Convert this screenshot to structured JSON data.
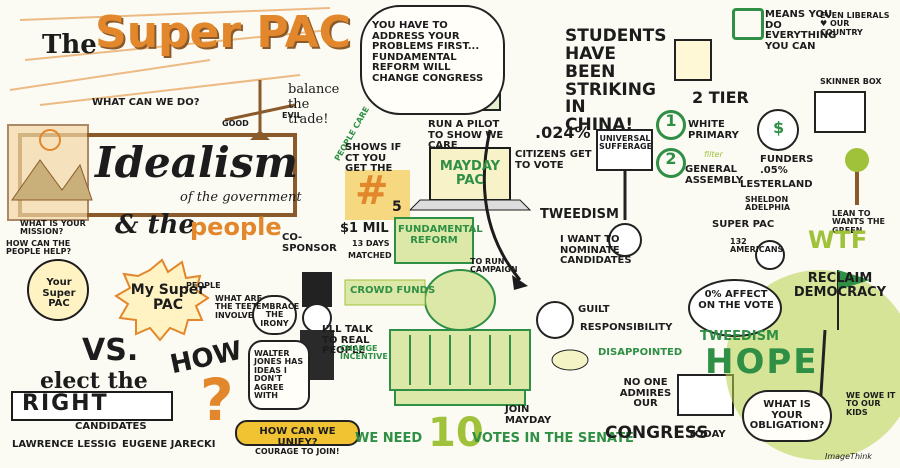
{
  "title": {
    "the": "The",
    "super_pac": "Super PAC"
  },
  "left": {
    "what_can_we_do": "What can we do?",
    "good": "Good",
    "evil": "Evil",
    "balance": "balance the trade!",
    "idealism": "Idealism",
    "of_government": "of the government",
    "and_the": "& the",
    "people": "people",
    "what_is_mission": "What is your mission?",
    "how_can_people_help": "How can the people help?",
    "your_super_pac": "Your Super PAC",
    "my_super_pac": "My Super PAC",
    "people_tag": "People",
    "what_are_teeth": "What are the teeth involved?",
    "vs": "VS.",
    "elect_the": "elect the",
    "right": "Right",
    "candidates": "candidates",
    "how": "How",
    "question": "?",
    "lawrence": "Lawrence Lessig",
    "eugene": "Eugene Jarecki",
    "co_sponsor": "Co-Sponsor",
    "embrace_irony": "Embrace the Irony",
    "walter_jones": "Walter Jones has ideas I don't agree with",
    "ill_talk": "I'll talk to real people",
    "how_unify": "How can we unify?",
    "courage": "Courage to join!"
  },
  "middle": {
    "address_problems": "You have to address your problems first... fundamental reform will change Congress",
    "people_care": "People Care",
    "shows_if": "Shows if CT you get the",
    "hash": "#",
    "five": "5",
    "run_pilot": "Run a pilot to show we care",
    "mayday_pac": "Mayday PAC",
    "one_mil": "$1 Mil",
    "thirteen_days": "13 days",
    "matched": "Matched",
    "fundamental_reform": "Fundamental Reform",
    "to_run_campaign": "To run campaign",
    "crowd_funds": "Crowd Funds",
    "change_incentive": "Change incentive",
    "we_need": "We need",
    "ten": "10",
    "votes_senate": "votes in the senate",
    "join_mayday": "Join Mayday"
  },
  "right": {
    "students": "Students have been striking in China!",
    "pct_024": ".024%",
    "citizens_vote": "citizens get to vote",
    "universal": "Universal Sufferage",
    "tweedism": "Tweedism",
    "i_want": "I want to nominate candidates",
    "guilt": "Guilt",
    "responsibility": "Responsibility",
    "disappointed": "Disappointed",
    "no_one": "No one admires our",
    "congress": "Congress",
    "today": "today",
    "two_tier": "2 Tier",
    "one": "1",
    "two": "2",
    "white_primary": "White Primary",
    "filter": "filter",
    "general_assembly": "General Assembly",
    "means_you_do": "Means you do everything you can",
    "even_liberals": "Even liberals ♥ our country",
    "skinner_box": "Skinner Box",
    "dollar": "$",
    "funders": "Funders .05%",
    "lesterland": "Lesterland",
    "sheldon": "Sheldon Adelphia",
    "super_pac": "Super PAC",
    "americans": "132 Americans",
    "lean_to_want": "Lean to wants the green",
    "wtf": "WTF",
    "zero_affect": "0% affect on the vote",
    "tweedism2": "Tweedism",
    "hope": "Hope",
    "reclaim": "Reclaim Democracy",
    "obligation": "What is your obligation?",
    "we_owe": "We owe it to our kids",
    "signature": "ImageThink"
  },
  "colors": {
    "orange": "#e2872b",
    "green": "#2f8f45",
    "lime": "#9fc23a",
    "brown": "#8a5a2b",
    "yellow": "#f1c232"
  }
}
